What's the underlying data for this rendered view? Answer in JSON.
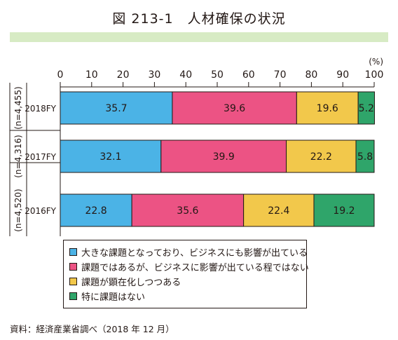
{
  "figure": {
    "title": "図 213-1　人材確保の状況",
    "source": "資料：経済産業省調べ（2018 年 12 月）"
  },
  "colors": {
    "title_band": "#d7ebc4",
    "series": [
      "#4bb3e6",
      "#ec5384",
      "#f2c84b",
      "#2fa56a"
    ]
  },
  "chart_data": {
    "type": "bar",
    "orientation": "horizontal",
    "stacked": true,
    "unit_label": "(%)",
    "xlim": [
      0,
      100
    ],
    "xticks": [
      0,
      10,
      20,
      30,
      40,
      50,
      60,
      70,
      80,
      90,
      100
    ],
    "categories": [
      "2018FY",
      "2017FY",
      "2016FY"
    ],
    "sample_sizes": [
      "(n=4,455)",
      "(n=4,316)",
      "(n=4,520)"
    ],
    "series": [
      {
        "name": "大きな課題となっており、ビジネスにも影響が出ている",
        "values": [
          35.7,
          32.1,
          22.8
        ]
      },
      {
        "name": "課題ではあるが、ビジネスに影響が出ている程ではない",
        "values": [
          39.6,
          39.9,
          35.6
        ]
      },
      {
        "name": "課題が顕在化しつつある",
        "values": [
          19.6,
          22.2,
          22.4
        ]
      },
      {
        "name": "特に課題はない",
        "values": [
          5.2,
          5.8,
          19.2
        ]
      }
    ],
    "grid": false,
    "legend_position": "bottom-left"
  }
}
